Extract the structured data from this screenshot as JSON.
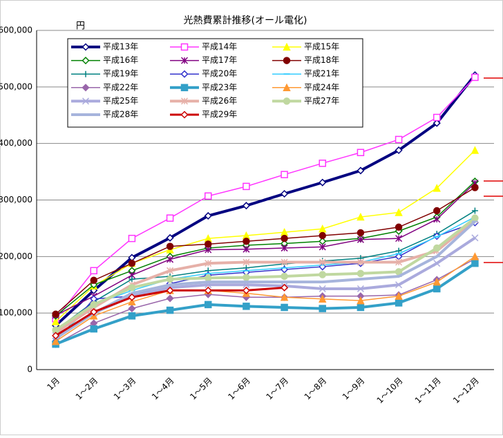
{
  "chart_data": {
    "type": "line",
    "title": "光熱費累計推移(オール電化)",
    "y_label": "円",
    "categories": [
      "1月",
      "1～2月",
      "1～3月",
      "1～4月",
      "1～5月",
      "1～6月",
      "1～7月",
      "1～8月",
      "1～9月",
      "1～10月",
      "1～11月",
      "1～12月"
    ],
    "ylim": [
      0,
      600000
    ],
    "yticks": [
      0,
      {
        "value": 100000,
        "label": "100,000"
      },
      {
        "value": 200000,
        "label": "200,000"
      },
      {
        "value": 300000,
        "label": "300,000"
      },
      {
        "value": 400000,
        "label": "400,000"
      },
      {
        "value": 500000,
        "label": "500,000"
      },
      {
        "value": 600000,
        "label": "600,000"
      }
    ],
    "grid": true,
    "legend": "top-left",
    "series": [
      {
        "name": "平成13年",
        "color": "#000080",
        "marker": "diamond-open",
        "width": 4,
        "values": [
          78000,
          140000,
          198000,
          233000,
          272000,
          290000,
          311000,
          331000,
          352000,
          388000,
          436000,
          521000
        ]
      },
      {
        "name": "平成14年",
        "color": "#ff33ff",
        "marker": "square-open",
        "width": 1.5,
        "values": [
          90000,
          175000,
          232000,
          268000,
          307000,
          324000,
          345000,
          365000,
          384000,
          407000,
          446000,
          517000
        ]
      },
      {
        "name": "平成15年",
        "color": "#ffff00",
        "marker": "triangle",
        "width": 1.5,
        "values": [
          85000,
          148000,
          188000,
          212000,
          232000,
          237000,
          243000,
          249000,
          270000,
          278000,
          321000,
          388000
        ]
      },
      {
        "name": "平成16年",
        "color": "#008000",
        "marker": "diamond-open",
        "width": 1.5,
        "values": [
          95000,
          150000,
          175000,
          200000,
          215000,
          220000,
          223000,
          227000,
          232000,
          245000,
          270000,
          333000
        ]
      },
      {
        "name": "平成17年",
        "color": "#800080",
        "marker": "star",
        "width": 1.5,
        "values": [
          96000,
          130000,
          167000,
          195000,
          212000,
          213000,
          215000,
          217000,
          230000,
          232000,
          266000,
          330000
        ]
      },
      {
        "name": "平成18年",
        "color": "#800000",
        "marker": "circle",
        "width": 1.5,
        "values": [
          98000,
          158000,
          188000,
          218000,
          222000,
          227000,
          232000,
          237000,
          242000,
          252000,
          281000,
          322000
        ]
      },
      {
        "name": "平成19年",
        "color": "#008080",
        "marker": "plus",
        "width": 1.5,
        "values": [
          70000,
          120000,
          160000,
          165000,
          175000,
          180000,
          187000,
          192000,
          197000,
          210000,
          240000,
          281000
        ]
      },
      {
        "name": "平成20年",
        "color": "#3333cc",
        "marker": "diamond-open",
        "width": 1.5,
        "values": [
          50000,
          125000,
          130000,
          152000,
          167000,
          172000,
          177000,
          182000,
          188000,
          200000,
          236000,
          260000
        ]
      },
      {
        "name": "平成21年",
        "color": "#33ccff",
        "marker": "dash",
        "width": 1.5,
        "values": [
          55000,
          115000,
          140000,
          160000,
          170000,
          175000,
          180000,
          185000,
          190000,
          205000,
          235000,
          270000
        ]
      },
      {
        "name": "平成22年",
        "color": "#9966aa",
        "marker": "diamond",
        "width": 1.5,
        "values": [
          45000,
          82000,
          108000,
          126000,
          133000,
          128000,
          128000,
          130000,
          130000,
          132000,
          159000,
          196000
        ]
      },
      {
        "name": "平成23年",
        "color": "#33a0c8",
        "marker": "square",
        "width": 4,
        "values": [
          45000,
          72000,
          95000,
          105000,
          115000,
          112000,
          110000,
          108000,
          110000,
          118000,
          143000,
          188000
        ]
      },
      {
        "name": "平成24年",
        "color": "#ff9933",
        "marker": "triangle",
        "width": 1.5,
        "values": [
          50000,
          95000,
          120000,
          140000,
          140000,
          135000,
          128000,
          125000,
          122000,
          130000,
          155000,
          200000
        ]
      },
      {
        "name": "平成25年",
        "color": "#aaaadd",
        "marker": "cross",
        "width": 4,
        "values": [
          60000,
          100000,
          130000,
          145000,
          150000,
          150000,
          148000,
          143000,
          143000,
          150000,
          188000,
          233000
        ]
      },
      {
        "name": "平成26年",
        "color": "#e6b0a8",
        "marker": "star",
        "width": 4,
        "values": [
          65000,
          110000,
          150000,
          175000,
          188000,
          190000,
          190000,
          190000,
          190000,
          190000,
          210000,
          265000
        ]
      },
      {
        "name": "平成27年",
        "color": "#c0d8a0",
        "marker": "circle",
        "width": 4,
        "values": [
          70000,
          115000,
          145000,
          160000,
          162000,
          163000,
          165000,
          168000,
          170000,
          173000,
          215000,
          268000
        ]
      },
      {
        "name": "平成28年",
        "color": "#a6b4dc",
        "marker": "dash",
        "width": 4,
        "values": [
          55000,
          100000,
          135000,
          150000,
          155000,
          155000,
          155000,
          155000,
          160000,
          165000,
          200000,
          262000
        ]
      },
      {
        "name": "平成29年",
        "color": "#cc0000",
        "marker": "diamond-open",
        "width": 3,
        "values": [
          60000,
          102000,
          128000,
          140000,
          140000,
          140000,
          145000,
          null,
          null,
          null,
          null,
          null
        ]
      }
    ]
  }
}
